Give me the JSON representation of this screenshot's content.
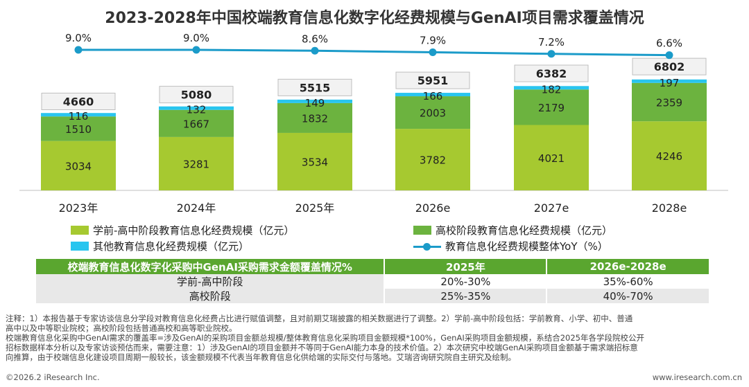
{
  "title": "2023-2028年中国校端教育信息化数字化经费规模与GenAI项目需求覆盖情况",
  "chart_data": {
    "type": "bar",
    "stacked": true,
    "categories": [
      "2023年",
      "2024年",
      "2025年",
      "2026e",
      "2027e",
      "2028e"
    ],
    "series": [
      {
        "name": "学前-高中阶段教育信息化经费规模（亿元）",
        "color": "#a6c930",
        "values": [
          3034,
          3281,
          3534,
          3782,
          4021,
          4246
        ]
      },
      {
        "name": "高校阶段教育信息化经费规模（亿元）",
        "color": "#6cb33f",
        "values": [
          1510,
          1667,
          1832,
          2003,
          2179,
          2359
        ]
      },
      {
        "name": "其他教育信息化经费规模（亿元）",
        "color": "#29c5ef",
        "values": [
          116,
          132,
          149,
          166,
          182,
          197
        ]
      }
    ],
    "totals": [
      "4660",
      "5080",
      "5515",
      "5951",
      "6382",
      "6802"
    ],
    "line": {
      "name": "教育信息化经费规模整体YoY（%）",
      "color": "#1b9bc9",
      "values": [
        9.0,
        9.0,
        8.6,
        7.9,
        7.2,
        6.6
      ],
      "labels": [
        "9.0%",
        "9.0%",
        "8.6%",
        "7.9%",
        "7.2%",
        "6.6%"
      ]
    }
  },
  "table": {
    "headers": [
      "校端教育信息化数字化采购中GenAI采购需求金额覆盖情况%",
      "2025年",
      "2026e-2028e"
    ],
    "rows": [
      [
        "学前-高中阶段",
        "20%-30%",
        "35%-60%"
      ],
      [
        "高校阶段",
        "25%-35%",
        "40%-70%"
      ]
    ]
  },
  "notes": [
    "注释：1）本报告基于专家访谈信息分学段对教育信息化经费占比进行赋值调整，且对前期艾瑞披露的相关数据进行了调整。2）学前-高中阶段包括：学前教育、小学、初中、普通",
    "高中以及中等职业院校；高校阶段包括普通高校和高等职业院校。",
    "校端教育信息化采购中GenAI需求的覆盖率=涉及GenAI的采购项目金额总规模/整体教育信息化采购项目金额规模*100%，GenAI采购项目金额规模，系结合2025年各学段院校公开",
    "招标数据样本分析以及专家访谈预估而来，需要注意：1）涉及GenAI的项目金额并不等同于GenAI能力本身的技术价值。2）本次研究中校端GenAI采购项目金额基于需求端招标意",
    "向推算，由于校端信息化建设项目周期一般较长，该金额规模不代表当年教育信息化供给端的实际交付与落地。艾瑞咨询研究院自主研究及绘制。"
  ],
  "footer": {
    "left": "©2026.2 iResearch Inc.",
    "right": "www.iresearch.com.cn"
  }
}
